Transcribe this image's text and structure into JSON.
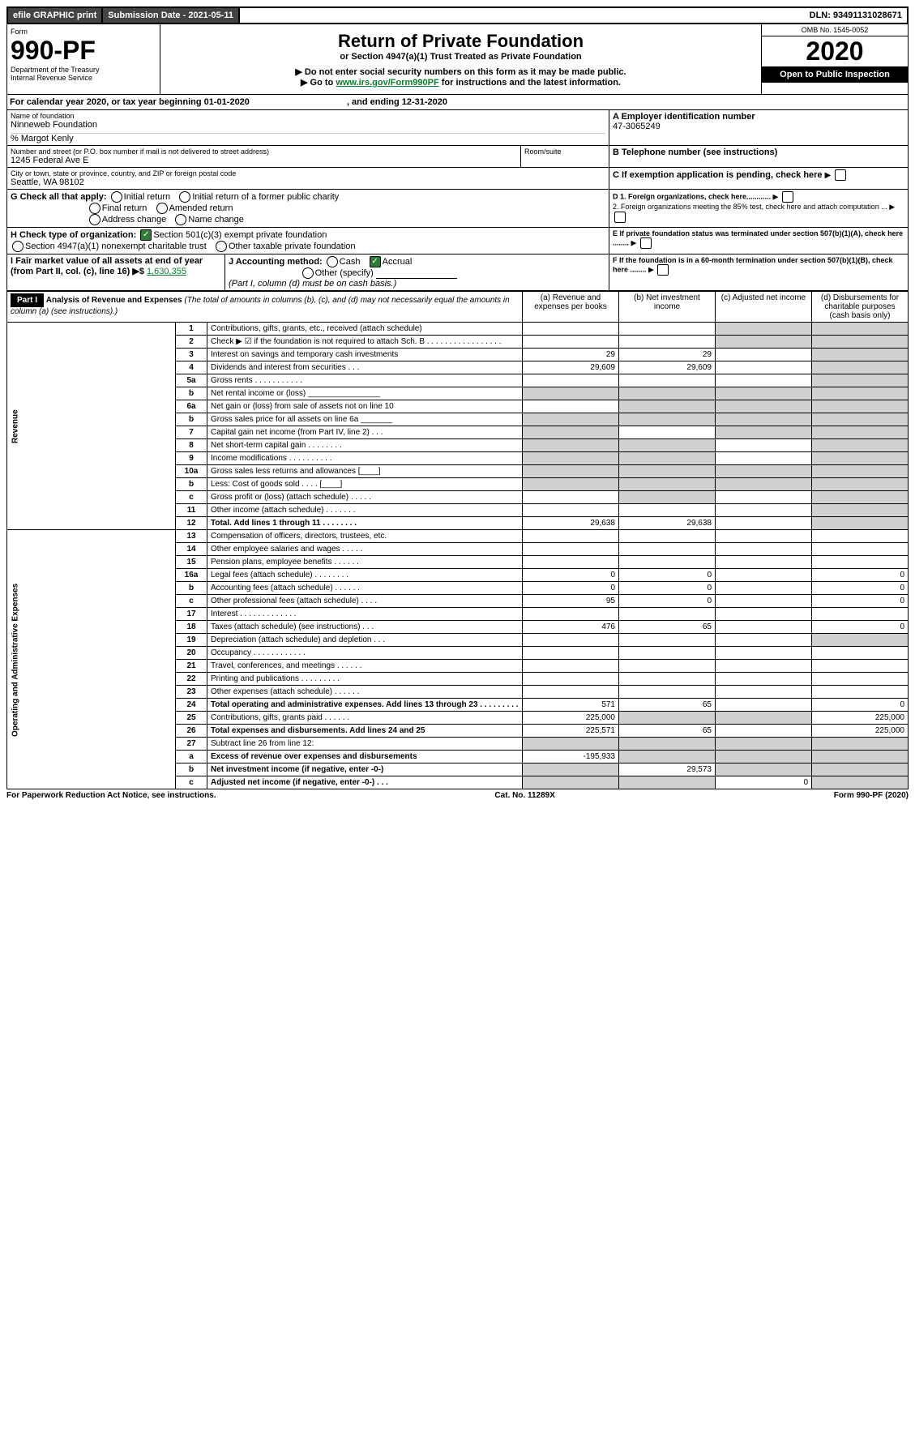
{
  "topbar": {
    "efile": "efile GRAPHIC print",
    "sub_label": "Submission Date - 2021-05-11",
    "dln": "DLN: 93491131028671"
  },
  "header": {
    "form_word": "Form",
    "form_no": "990-PF",
    "dept": "Department of the Treasury",
    "irs": "Internal Revenue Service",
    "title": "Return of Private Foundation",
    "subtitle": "or Section 4947(a)(1) Trust Treated as Private Foundation",
    "note1": "▶ Do not enter social security numbers on this form as it may be made public.",
    "note2_pre": "▶ Go to ",
    "note2_link": "www.irs.gov/Form990PF",
    "note2_post": " for instructions and the latest information.",
    "omb": "OMB No. 1545-0052",
    "year": "2020",
    "open": "Open to Public Inspection"
  },
  "cal": {
    "text": "For calendar year 2020, or tax year beginning 01-01-2020",
    "end": ", and ending 12-31-2020"
  },
  "box": {
    "name_label": "Name of foundation",
    "name": "Ninneweb Foundation",
    "care_of": "% Margot Kenly",
    "addr_label": "Number and street (or P.O. box number if mail is not delivered to street address)",
    "addr": "1245 Federal Ave E",
    "room_label": "Room/suite",
    "city_label": "City or town, state or province, country, and ZIP or foreign postal code",
    "city": "Seattle, WA  98102",
    "a_label": "A Employer identification number",
    "a_val": "47-3065249",
    "b_label": "B Telephone number (see instructions)",
    "c_label": "C If exemption application is pending, check here",
    "d1": "D 1. Foreign organizations, check here............",
    "d2": "2. Foreign organizations meeting the 85% test, check here and attach computation ...",
    "e_label": "E  If private foundation status was terminated under section 507(b)(1)(A), check here ........",
    "f_label": "F  If the foundation is in a 60-month termination under section 507(b)(1)(B), check here ........",
    "g_label": "G Check all that apply:",
    "g_opts": [
      "Initial return",
      "Initial return of a former public charity",
      "Final return",
      "Amended return",
      "Address change",
      "Name change"
    ],
    "h_label": "H Check type of organization:",
    "h1": "Section 501(c)(3) exempt private foundation",
    "h2": "Section 4947(a)(1) nonexempt charitable trust",
    "h3": "Other taxable private foundation",
    "i_label": "I Fair market value of all assets at end of year (from Part II, col. (c), line 16) ▶$ ",
    "i_val": "1,630,355",
    "j_label": "J Accounting method:",
    "j_cash": "Cash",
    "j_accrual": "Accrual",
    "j_other": "Other (specify)",
    "j_note": "(Part I, column (d) must be on cash basis.)"
  },
  "part1": {
    "label": "Part I",
    "title": "Analysis of Revenue and Expenses",
    "note": " (The total of amounts in columns (b), (c), and (d) may not necessarily equal the amounts in column (a) (see instructions).)",
    "col_a": "(a)   Revenue and expenses per books",
    "col_b": "(b)  Net investment income",
    "col_c": "(c)  Adjusted net income",
    "col_d": "(d)  Disbursements for charitable purposes (cash basis only)"
  },
  "sections": {
    "revenue": "Revenue",
    "expenses": "Operating and Administrative Expenses"
  },
  "rows": [
    {
      "n": "1",
      "d": "Contributions, gifts, grants, etc., received (attach schedule)",
      "a": "",
      "b": "",
      "shaded_c": true,
      "shaded_d": true
    },
    {
      "n": "2",
      "d": "Check ▶ ☑ if the foundation is not required to attach Sch. B   .  .  .  .  .  .  .  .  .  .  .  .  .  .  .  .  .",
      "a": "",
      "b": "",
      "shaded_c": true,
      "shaded_d": true
    },
    {
      "n": "3",
      "d": "Interest on savings and temporary cash investments",
      "a": "29",
      "b": "29",
      "c": "",
      "shaded_d": true
    },
    {
      "n": "4",
      "d": "Dividends and interest from securities    .   .   .",
      "a": "29,609",
      "b": "29,609",
      "c": "",
      "shaded_d": true
    },
    {
      "n": "5a",
      "d": "Gross rents    .   .   .   .   .   .   .   .   .   .   .",
      "a": "",
      "b": "",
      "c": "",
      "shaded_d": true
    },
    {
      "n": "b",
      "d": "Net rental income or (loss)  ________________",
      "shaded_a": true,
      "shaded_b": true,
      "shaded_c": true,
      "shaded_d": true
    },
    {
      "n": "6a",
      "d": "Net gain or (loss) from sale of assets not on line 10",
      "a": "",
      "shaded_b": true,
      "shaded_c": true,
      "shaded_d": true
    },
    {
      "n": "b",
      "d": "Gross sales price for all assets on line 6a  _______",
      "shaded_a": true,
      "shaded_b": true,
      "shaded_c": true,
      "shaded_d": true
    },
    {
      "n": "7",
      "d": "Capital gain net income (from Part IV, line 2)    .   .   .",
      "shaded_a": true,
      "b": "",
      "shaded_c": true,
      "shaded_d": true
    },
    {
      "n": "8",
      "d": "Net short-term capital gain   .   .   .   .   .   .   .   .",
      "shaded_a": true,
      "shaded_b": true,
      "c": "",
      "shaded_d": true
    },
    {
      "n": "9",
      "d": "Income modifications  .   .   .   .   .   .   .   .   .   .",
      "shaded_a": true,
      "shaded_b": true,
      "c": "",
      "shaded_d": true
    },
    {
      "n": "10a",
      "d": "Gross sales less returns and allowances  [____]",
      "shaded_a": true,
      "shaded_b": true,
      "shaded_c": true,
      "shaded_d": true
    },
    {
      "n": "b",
      "d": "Less: Cost of goods sold      .   .   .   .  [____]",
      "shaded_a": true,
      "shaded_b": true,
      "shaded_c": true,
      "shaded_d": true
    },
    {
      "n": "c",
      "d": "Gross profit or (loss) (attach schedule)    .   .   .   .   .",
      "a": "",
      "shaded_b": true,
      "c": "",
      "shaded_d": true
    },
    {
      "n": "11",
      "d": "Other income (attach schedule)    .   .   .   .   .   .   .",
      "a": "",
      "b": "",
      "c": "",
      "shaded_d": true
    },
    {
      "n": "12",
      "d": "Total. Add lines 1 through 11    .   .   .   .   .   .   .   .",
      "a": "29,638",
      "b": "29,638",
      "c": "",
      "shaded_d": true,
      "bold": true
    }
  ],
  "exp_rows": [
    {
      "n": "13",
      "d": "Compensation of officers, directors, trustees, etc.",
      "a": "",
      "b": "",
      "c": "",
      "dd": ""
    },
    {
      "n": "14",
      "d": "Other employee salaries and wages    .   .   .   .   .",
      "a": "",
      "b": "",
      "c": "",
      "dd": ""
    },
    {
      "n": "15",
      "d": "Pension plans, employee benefits   .   .   .   .   .   .",
      "a": "",
      "b": "",
      "c": "",
      "dd": ""
    },
    {
      "n": "16a",
      "d": "Legal fees (attach schedule)   .   .   .   .   .   .   .   .",
      "a": "0",
      "b": "0",
      "c": "",
      "dd": "0"
    },
    {
      "n": "b",
      "d": "Accounting fees (attach schedule)   .   .   .   .   .   .",
      "a": "0",
      "b": "0",
      "c": "",
      "dd": "0"
    },
    {
      "n": "c",
      "d": "Other professional fees (attach schedule)    .   .   .   .",
      "a": "95",
      "b": "0",
      "c": "",
      "dd": "0"
    },
    {
      "n": "17",
      "d": "Interest    .   .   .   .   .   .   .   .   .   .   .   .   .",
      "a": "",
      "b": "",
      "c": "",
      "dd": ""
    },
    {
      "n": "18",
      "d": "Taxes (attach schedule) (see instructions)    .   .   .",
      "a": "476",
      "b": "65",
      "c": "",
      "dd": "0"
    },
    {
      "n": "19",
      "d": "Depreciation (attach schedule) and depletion    .   .   .",
      "a": "",
      "b": "",
      "c": "",
      "shaded_d": true
    },
    {
      "n": "20",
      "d": "Occupancy   .   .   .   .   .   .   .   .   .   .   .   .",
      "a": "",
      "b": "",
      "c": "",
      "dd": ""
    },
    {
      "n": "21",
      "d": "Travel, conferences, and meetings   .   .   .   .   .   .",
      "a": "",
      "b": "",
      "c": "",
      "dd": ""
    },
    {
      "n": "22",
      "d": "Printing and publications   .   .   .   .   .   .   .   .   .",
      "a": "",
      "b": "",
      "c": "",
      "dd": ""
    },
    {
      "n": "23",
      "d": "Other expenses (attach schedule)   .   .   .   .   .   .",
      "a": "",
      "b": "",
      "c": "",
      "dd": ""
    },
    {
      "n": "24",
      "d": "Total operating and administrative expenses. Add lines 13 through 23   .   .   .   .   .   .   .   .   .",
      "a": "571",
      "b": "65",
      "c": "",
      "dd": "0",
      "bold": true
    },
    {
      "n": "25",
      "d": "Contributions, gifts, grants paid      .   .   .   .   .   .",
      "a": "225,000",
      "shaded_b": true,
      "shaded_c": true,
      "dd": "225,000"
    },
    {
      "n": "26",
      "d": "Total expenses and disbursements. Add lines 24 and 25",
      "a": "225,571",
      "b": "65",
      "c": "",
      "dd": "225,000",
      "bold": true
    },
    {
      "n": "27",
      "d": "Subtract line 26 from line 12:",
      "shaded_a": true,
      "shaded_b": true,
      "shaded_c": true,
      "shaded_d": true
    },
    {
      "n": "a",
      "d": "Excess of revenue over expenses and disbursements",
      "a": "-195,933",
      "shaded_b": true,
      "shaded_c": true,
      "shaded_d": true,
      "bold": true
    },
    {
      "n": "b",
      "d": "Net investment income (if negative, enter -0-)",
      "shaded_a": true,
      "b": "29,573",
      "shaded_c": true,
      "shaded_d": true,
      "bold": true
    },
    {
      "n": "c",
      "d": "Adjusted net income (if negative, enter -0-)    .   .   .",
      "shaded_a": true,
      "shaded_b": true,
      "c": "0",
      "shaded_d": true,
      "bold": true
    }
  ],
  "footer": {
    "left": "For Paperwork Reduction Act Notice, see instructions.",
    "mid": "Cat. No. 11289X",
    "right": "Form 990-PF (2020)"
  }
}
